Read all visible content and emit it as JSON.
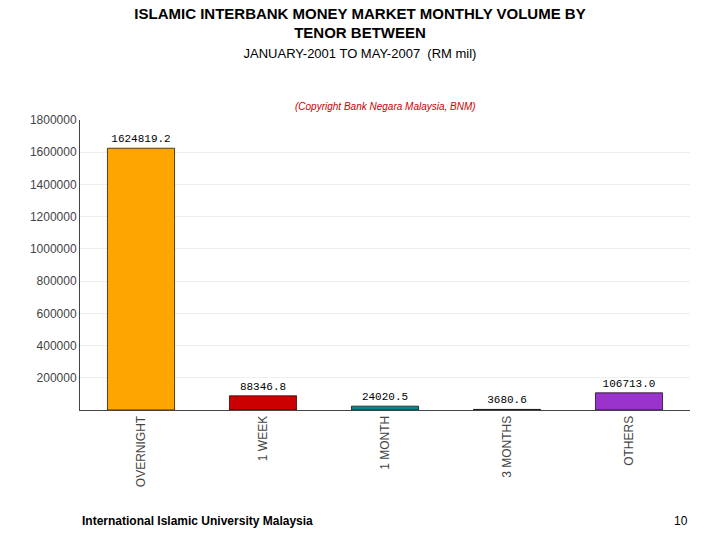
{
  "chart_data": {
    "type": "bar",
    "title": "ISLAMIC INTERBANK MONEY MARKET MONTHLY VOLUME BY\nTENOR BETWEEN",
    "subtitle": "JANUARY-2001 TO MAY-2007  (RM mil)",
    "annotations": [
      "(Copyright Bank Negara Malaysia, BNM)",
      "International Islamic University Malaysia",
      "10"
    ],
    "categories": [
      "OVERNIGHT",
      "1 WEEK",
      "1 MONTH",
      "3 MONTHS",
      "OTHERS"
    ],
    "values": [
      1624819.2,
      88346.8,
      24020.5,
      3680.6,
      106713.0
    ],
    "value_labels": [
      "1624819.2",
      "88346.8",
      "24020.5",
      "3680.6",
      "106713.0"
    ],
    "data_labels": true,
    "colors": [
      "#FFA500",
      "#CC0000",
      "#008B8B",
      "#111111",
      "#9933CC"
    ],
    "ylim": [
      0,
      1800000
    ],
    "yticks": [
      200000,
      400000,
      600000,
      800000,
      1000000,
      1200000,
      1400000,
      1600000,
      1800000
    ],
    "grid": true
  }
}
